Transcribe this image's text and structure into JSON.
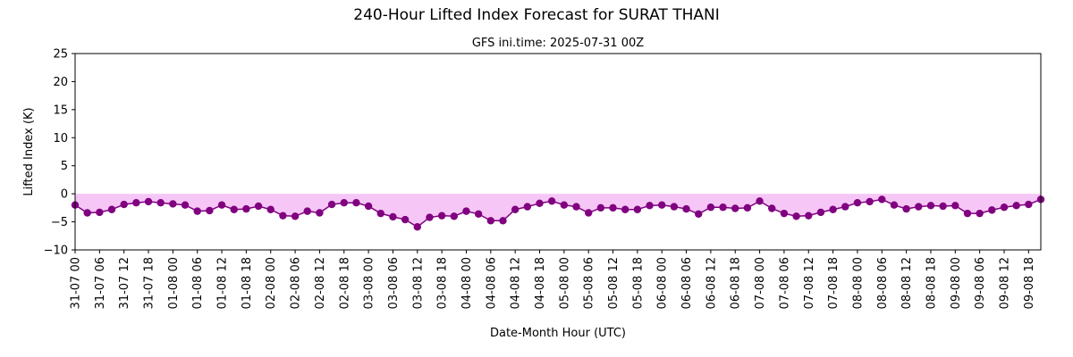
{
  "chart_data": {
    "type": "line",
    "title": "240-Hour Lifted Index Forecast for SURAT THANI",
    "subtitle": "GFS ini.time: 2025-07-31 00Z",
    "xlabel": "Date-Month Hour (UTC)",
    "ylabel": "Lifted Index (K)",
    "ylim": [
      -10,
      25
    ],
    "yticks": [
      -10,
      -5,
      0,
      5,
      10,
      15,
      20,
      25
    ],
    "xtick_labels": [
      "31-07 00",
      "31-07 06",
      "31-07 12",
      "31-07 18",
      "01-08 00",
      "01-08 06",
      "01-08 12",
      "01-08 18",
      "02-08 00",
      "02-08 06",
      "02-08 12",
      "02-08 18",
      "03-08 00",
      "03-08 06",
      "03-08 12",
      "03-08 18",
      "04-08 00",
      "04-08 06",
      "04-08 12",
      "04-08 18",
      "05-08 00",
      "05-08 06",
      "05-08 12",
      "05-08 18",
      "06-08 00",
      "06-08 06",
      "06-08 12",
      "06-08 18",
      "07-08 00",
      "07-08 06",
      "07-08 12",
      "07-08 18",
      "08-08 00",
      "08-08 06",
      "08-08 12",
      "08-08 18",
      "09-08 00",
      "09-08 06",
      "09-08 12",
      "09-08 18"
    ],
    "x_step_hours": 3,
    "grid": false,
    "line_color": "#800080",
    "fill_color": "#ee99ee",
    "fill_below_zero": true,
    "values": [
      -2.0,
      -3.4,
      -3.3,
      -2.8,
      -1.9,
      -1.6,
      -1.4,
      -1.6,
      -1.8,
      -2.0,
      -3.1,
      -3.0,
      -2.0,
      -2.8,
      -2.7,
      -2.2,
      -2.8,
      -3.9,
      -4.0,
      -3.1,
      -3.4,
      -1.9,
      -1.6,
      -1.6,
      -2.2,
      -3.5,
      -4.1,
      -4.6,
      -5.9,
      -4.2,
      -3.9,
      -4.0,
      -3.1,
      -3.6,
      -4.8,
      -4.8,
      -2.8,
      -2.3,
      -1.7,
      -1.3,
      -2.0,
      -2.3,
      -3.4,
      -2.5,
      -2.5,
      -2.8,
      -2.8,
      -2.1,
      -2.0,
      -2.3,
      -2.7,
      -3.6,
      -2.4,
      -2.4,
      -2.6,
      -2.5,
      -1.3,
      -2.6,
      -3.5,
      -4.0,
      -3.9,
      -3.3,
      -2.8,
      -2.3,
      -1.6,
      -1.4,
      -1.0,
      -2.0,
      -2.7,
      -2.3,
      -2.1,
      -2.2,
      -2.1,
      -3.5,
      -3.5,
      -2.9,
      -2.4,
      -2.1,
      -1.9,
      -1.0
    ]
  }
}
